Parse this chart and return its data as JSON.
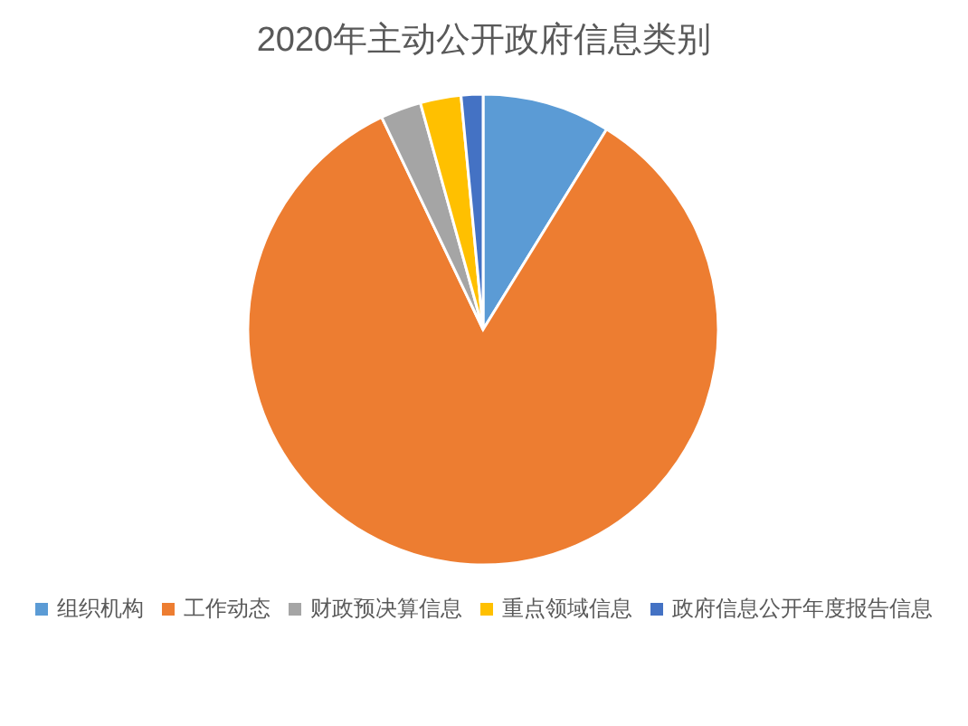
{
  "chart_data": {
    "type": "pie",
    "title": "2020年主动公开政府信息类别",
    "categories": [
      "组织机构",
      "工作动态",
      "财政预决算信息",
      "重点领域信息",
      "政府信息公开年度报告信息"
    ],
    "values": [
      8.8,
      84.1,
      2.8,
      2.8,
      1.5
    ],
    "colors": [
      "#5b9bd5",
      "#ed7d31",
      "#a5a5a5",
      "#ffc000",
      "#4472c4"
    ],
    "legend": "bottom"
  }
}
